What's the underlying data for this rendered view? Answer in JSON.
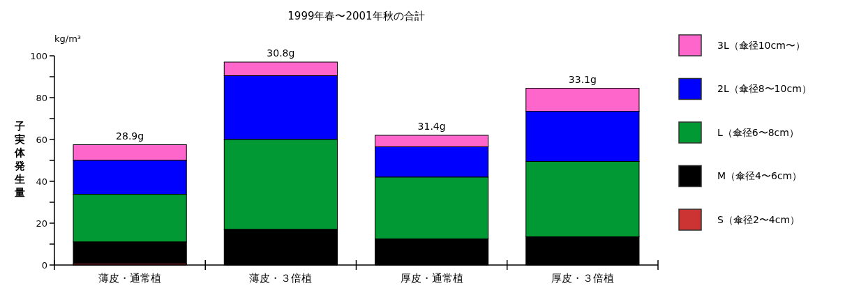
{
  "chart_data": {
    "type": "bar",
    "stacked": true,
    "title": "1999年春〜2001年秋の合計",
    "ylabel": "子実体発生量",
    "categories": [
      "薄皮・通常植",
      "薄皮・３倍植",
      "厚皮・通常植",
      "厚皮・３倍植"
    ],
    "series": [
      {
        "name": "S（傘径2〜4cm）",
        "color": "#cc3333",
        "values": [
          0.7,
          0,
          0,
          0
        ]
      },
      {
        "name": "M（傘径4〜6cm）",
        "color": "#000000",
        "values": [
          10.3,
          17,
          12.5,
          13.5
        ]
      },
      {
        "name": "L（傘径6〜8cm）",
        "color": "#009933",
        "values": [
          22.8,
          43,
          29.5,
          36
        ]
      },
      {
        "name": "2L（傘径8〜10cm）",
        "color": "#0000ff",
        "values": [
          16.2,
          30.5,
          14.5,
          24
        ]
      },
      {
        "name": "3L（傘径10cm〜）",
        "color": "#ff66cc",
        "values": [
          7.5,
          6.5,
          5.5,
          11
        ]
      }
    ],
    "ylim": [
      0,
      100
    ],
    "yticks": [
      0,
      {
        "value": 10,
        "label": null
      },
      20,
      {
        "value": 30,
        "label": null
      },
      40,
      {
        "value": 50,
        "label": null
      },
      60,
      {
        "value": 70,
        "label": null
      },
      80,
      {
        "value": 90,
        "label": null
      },
      100
    ],
    "legend": "right",
    "annotations": [
      "kg/m³",
      {
        "text": "28.9g",
        "x": "薄皮・通常植",
        "y": 57.5
      },
      {
        "text": "30.8g",
        "x": "薄皮・３倍植",
        "y": 97
      },
      {
        "text": "31.4g",
        "x": "厚皮・通常植",
        "y": 62
      },
      {
        "text": "33.1g",
        "x": "厚皮・３倍植",
        "y": 84.5
      }
    ]
  }
}
